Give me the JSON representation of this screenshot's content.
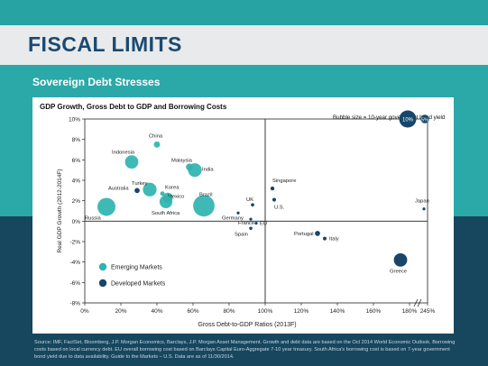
{
  "slide": {
    "title": "FISCAL LIMITS",
    "subtitle": "Sovereign Debt Stresses",
    "footnote": "Source: IMF, FactSet, Bloomberg, J.P. Morgan Economics, Barclays, J.P. Morgan Asset Management. Growth and debt data are based on the Oct 2014 World Economic Outlook. Borrowing costs based on local currency debt. EU overall borrowing cost based on Barclays Capital Euro-Aggregate 7-10 year treasury. South Africa's borrowing cost is based on 7-year government bond yield due to data availability. Guide to the Markets – U.S. Data are as of 11/30/2014."
  },
  "colors": {
    "emerging": "#2fb3b0",
    "developed": "#17466a",
    "title": "#1a4a72",
    "teal_band": "#2aa9a8",
    "navy_band": "#17465f"
  },
  "chart_data": {
    "type": "scatter",
    "title": "GDP Growth, Gross Debt to GDP and Borrowing Costs",
    "xlabel": "Gross Debt-to-GDP Ratios (2013F)",
    "ylabel": "Real GDP Growth (2012-2014F)",
    "xlim": [
      0,
      190
    ],
    "ylim": [
      -8,
      10
    ],
    "x_ticks": [
      "0%",
      "20%",
      "40%",
      "60%",
      "80%",
      "100%",
      "120%",
      "140%",
      "160%",
      "180%",
      "245%"
    ],
    "x_tick_values": [
      0,
      20,
      40,
      60,
      80,
      100,
      120,
      140,
      160,
      180,
      190
    ],
    "y_ticks": [
      "10%",
      "8%",
      "6%",
      "4%",
      "2%",
      "0%",
      "-2%",
      "-4%",
      "-6%",
      "-8%"
    ],
    "y_tick_values": [
      10,
      8,
      6,
      4,
      2,
      0,
      -2,
      -4,
      -6,
      -8
    ],
    "axis_break": "between 180% and 245%",
    "reference_lines": {
      "x": 100,
      "y": 0
    },
    "bubble_size_meaning": "Bubble size = 10-year government bond yield",
    "bubble_legend": [
      {
        "label": "10%",
        "yield": 10
      },
      {
        "label": "5%",
        "yield": 5
      }
    ],
    "legend": [
      {
        "name": "Emerging Markets",
        "group": "emerging"
      },
      {
        "name": "Developed Markets",
        "group": "developed"
      }
    ],
    "legend_placement": "bottom-left",
    "points": [
      {
        "name": "China",
        "group": "emerging",
        "x": 40,
        "y": 7.5,
        "yield": 3.6
      },
      {
        "name": "Indonesia",
        "group": "emerging",
        "x": 26,
        "y": 5.8,
        "yield": 7.8
      },
      {
        "name": "Malaysia",
        "group": "emerging",
        "x": 58,
        "y": 5.3,
        "yield": 4.1
      },
      {
        "name": "India",
        "group": "emerging",
        "x": 61,
        "y": 5.0,
        "yield": 8.0
      },
      {
        "name": "Turkey",
        "group": "emerging",
        "x": 36,
        "y": 3.1,
        "yield": 8.0
      },
      {
        "name": "Korea",
        "group": "emerging",
        "x": 43,
        "y": 2.7,
        "yield": 2.6
      },
      {
        "name": "Mexico",
        "group": "emerging",
        "x": 46,
        "y": 2.3,
        "yield": 5.8
      },
      {
        "name": "South Africa",
        "group": "emerging",
        "x": 45,
        "y": 1.9,
        "yield": 7.5
      },
      {
        "name": "Brazil",
        "group": "emerging",
        "x": 66,
        "y": 1.5,
        "yield": 12.5
      },
      {
        "name": "Russia",
        "group": "emerging",
        "x": 12,
        "y": 1.4,
        "yield": 10.5
      },
      {
        "name": "Australia",
        "group": "developed",
        "x": 29,
        "y": 3.0,
        "yield": 3.0
      },
      {
        "name": "Singapore",
        "group": "developed",
        "x": 104,
        "y": 3.2,
        "yield": 2.3
      },
      {
        "name": "U.S.",
        "group": "developed",
        "x": 105,
        "y": 2.1,
        "yield": 2.2
      },
      {
        "name": "UK",
        "group": "developed",
        "x": 93,
        "y": 1.6,
        "yield": 1.9
      },
      {
        "name": "Germany",
        "group": "developed",
        "x": 85,
        "y": 0.8,
        "yield": 0.7
      },
      {
        "name": "France",
        "group": "developed",
        "x": 92,
        "y": 0.2,
        "yield": 0.9
      },
      {
        "name": "EU",
        "group": "developed",
        "x": 95,
        "y": -0.2,
        "yield": 1.0
      },
      {
        "name": "Spain",
        "group": "developed",
        "x": 92,
        "y": -0.7,
        "yield": 1.9
      },
      {
        "name": "Japan",
        "group": "developed",
        "x": 188,
        "y": 1.2,
        "yield": 0.4
      },
      {
        "name": "Portugal",
        "group": "developed",
        "x": 129,
        "y": -1.2,
        "yield": 3.0
      },
      {
        "name": "Italy",
        "group": "developed",
        "x": 133,
        "y": -1.7,
        "yield": 2.1
      },
      {
        "name": "Greece",
        "group": "developed",
        "x": 175,
        "y": -3.8,
        "yield": 7.8
      }
    ]
  }
}
